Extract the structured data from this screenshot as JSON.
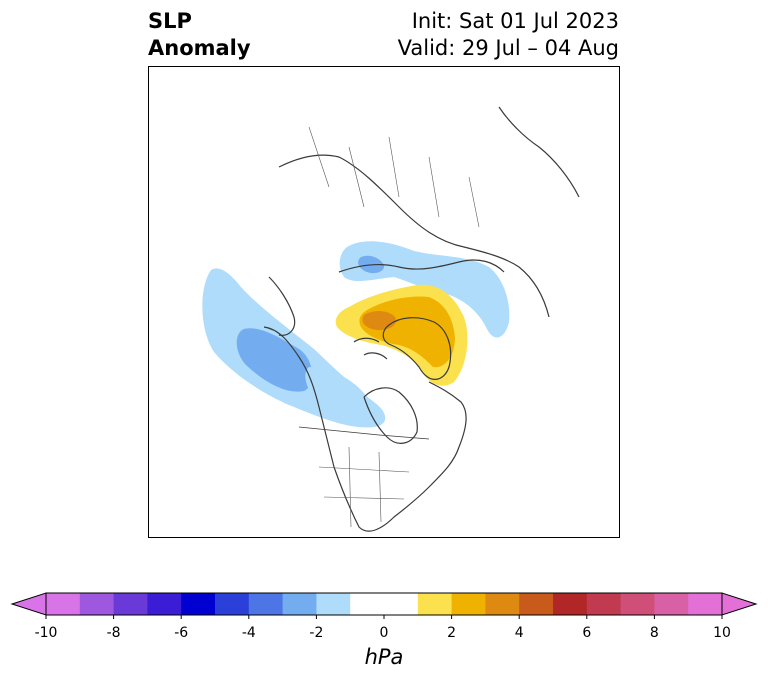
{
  "title": {
    "variable_line1": "SLP",
    "variable_line2": "Anomaly",
    "init": "Init: Sat 01 Jul 2023",
    "valid": "Valid: 29 Jul – 04 Aug"
  },
  "map": {
    "projection": "north-polar-stereographic",
    "region": "North America / Arctic",
    "anomaly_features": [
      {
        "name": "negative anomaly over NE Pacific / Gulf of Alaska",
        "min_hPa": -4
      },
      {
        "name": "negative anomaly over Siberian Arctic coast",
        "min_hPa": -4
      },
      {
        "name": "positive anomaly over Greenland / Canadian Archipelago",
        "max_hPa": 4
      }
    ]
  },
  "colorbar": {
    "unit_label": "hPa",
    "tick_labels": [
      "-10",
      "-8",
      "-6",
      "-4",
      "-2",
      "0",
      "2",
      "4",
      "6",
      "8",
      "10"
    ],
    "tick_values": [
      -10,
      -8,
      -6,
      -4,
      -2,
      0,
      2,
      4,
      6,
      8,
      10
    ],
    "extend": "both",
    "bins": [
      {
        "from": -10,
        "to": -9,
        "color": "#d874e8"
      },
      {
        "from": -9,
        "to": -8,
        "color": "#9e58e0"
      },
      {
        "from": -8,
        "to": -7,
        "color": "#6a3ad8"
      },
      {
        "from": -7,
        "to": -6,
        "color": "#3b1dd5"
      },
      {
        "from": -6,
        "to": -5,
        "color": "#0000d0"
      },
      {
        "from": -5,
        "to": -4,
        "color": "#2b3fd9"
      },
      {
        "from": -4,
        "to": -3,
        "color": "#4d75e6"
      },
      {
        "from": -3,
        "to": -2,
        "color": "#74acf0"
      },
      {
        "from": -2,
        "to": -1,
        "color": "#aedcfa"
      },
      {
        "from": -1,
        "to": 1,
        "color": "#ffffff"
      },
      {
        "from": 1,
        "to": 2,
        "color": "#fbe14e"
      },
      {
        "from": 2,
        "to": 3,
        "color": "#f0b200"
      },
      {
        "from": 3,
        "to": 4,
        "color": "#de8a12"
      },
      {
        "from": 4,
        "to": 5,
        "color": "#c85a1b"
      },
      {
        "from": 5,
        "to": 6,
        "color": "#b12626"
      },
      {
        "from": 6,
        "to": 7,
        "color": "#c23a50"
      },
      {
        "from": 7,
        "to": 8,
        "color": "#cf4f78"
      },
      {
        "from": 8,
        "to": 9,
        "color": "#d860a4"
      },
      {
        "from": 9,
        "to": 10,
        "color": "#e270d6"
      }
    ],
    "under_color": "#d874e8",
    "over_color": "#e270d6"
  }
}
